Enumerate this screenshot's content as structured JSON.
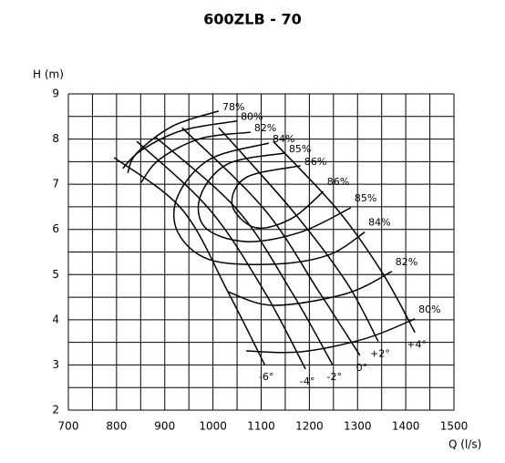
{
  "chart_data": {
    "type": "line",
    "title": "600ZLB - 70",
    "xlabel": "Q (l/s)",
    "ylabel": "H (m)",
    "xlim": [
      700,
      1500
    ],
    "ylim": [
      2,
      9
    ],
    "xticks": [
      700,
      800,
      900,
      1000,
      1100,
      1200,
      1300,
      1400,
      1500
    ],
    "yticks": [
      2,
      3,
      4,
      5,
      6,
      7,
      8,
      9
    ],
    "grid": true,
    "color": "#000000",
    "series": [
      {
        "name": "-6°",
        "kind": "blade",
        "x": [
          795,
          936,
          1031,
          1107
        ],
        "y": [
          7.59,
          6.44,
          4.62,
          3.01
        ]
      },
      {
        "name": "-4°",
        "kind": "blade",
        "x": [
          842,
          993,
          1107,
          1192
        ],
        "y": [
          7.95,
          6.44,
          4.62,
          2.91
        ]
      },
      {
        "name": "-2°",
        "kind": "blade",
        "x": [
          880,
          1050,
          1163,
          1248
        ],
        "y": [
          8.05,
          6.44,
          4.62,
          3.01
        ]
      },
      {
        "name": "0°",
        "kind": "blade",
        "x": [
          936,
          1107,
          1220,
          1305
        ],
        "y": [
          8.25,
          6.44,
          4.62,
          3.21
        ]
      },
      {
        "name": "+2°",
        "kind": "blade",
        "x": [
          1012,
          1163,
          1277,
          1343
        ],
        "y": [
          8.25,
          6.44,
          4.83,
          3.52
        ]
      },
      {
        "name": "+4°",
        "kind": "blade",
        "x": [
          1125,
          1258,
          1352,
          1419
        ],
        "y": [
          7.95,
          6.44,
          5.03,
          3.72
        ]
      },
      {
        "name": "78%",
        "kind": "efficiency",
        "x": [
          1012,
          917,
          842,
          823
        ],
        "y": [
          8.62,
          8.29,
          7.69,
          7.25
        ]
      },
      {
        "name": "80%",
        "kind": "efficiency",
        "x": [
          1050,
          936,
          851,
          813,
          null,
          1069,
          1182,
          1315,
          1419
        ],
        "y": [
          8.4,
          8.19,
          7.75,
          7.35,
          null,
          3.31,
          3.29,
          3.58,
          4.02
        ]
      },
      {
        "name": "82%",
        "kind": "efficiency",
        "x": [
          1078,
          974,
          889,
          851,
          null,
          1031,
          1125,
          1277,
          1371
        ],
        "y": [
          8.15,
          8.01,
          7.55,
          7.04,
          null,
          4.62,
          4.32,
          4.58,
          5.07
        ]
      },
      {
        "name": "84%",
        "kind": "efficiency",
        "x": [
          1116,
          993,
          927,
          927,
          993,
          1125,
          1239,
          1315
        ],
        "y": [
          7.91,
          7.55,
          6.74,
          5.94,
          5.33,
          5.23,
          5.43,
          5.94
        ]
      },
      {
        "name": "85%",
        "kind": "efficiency",
        "x": [
          1150,
          1031,
          974,
          984,
          1069,
          1182,
          1286
        ],
        "y": [
          7.69,
          7.45,
          6.74,
          6.04,
          5.73,
          5.94,
          6.48
        ]
      },
      {
        "name": "86%",
        "kind": "efficiency",
        "x": [
          1182,
          1069,
          1040,
          1088,
          1163,
          1229
        ],
        "y": [
          7.41,
          7.15,
          6.54,
          6.04,
          6.24,
          6.84
        ]
      }
    ]
  }
}
